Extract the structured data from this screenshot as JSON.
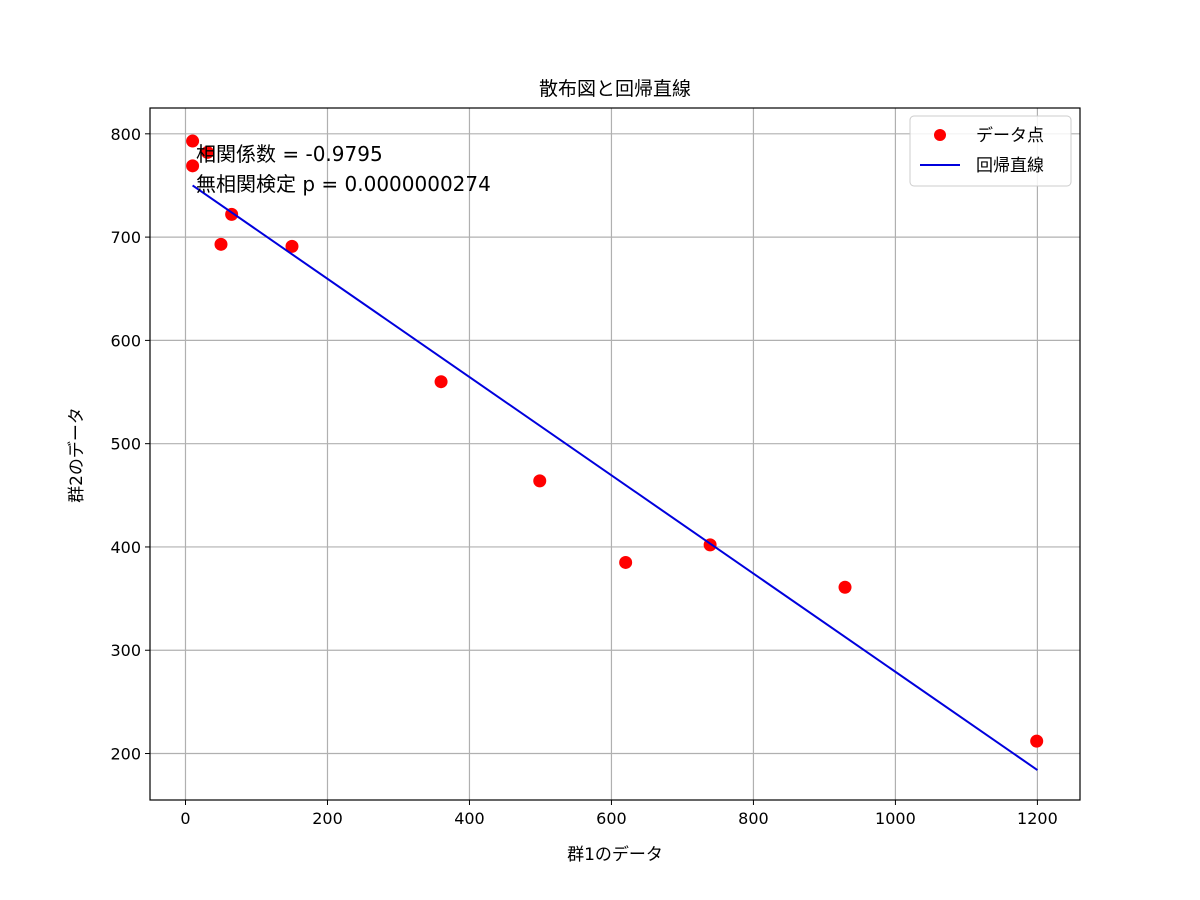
{
  "chart_data": {
    "type": "scatter",
    "title": "散布図と回帰直線",
    "xlabel": "群1のデータ",
    "ylabel": "群2のデータ",
    "xlim": [
      -50,
      1260
    ],
    "ylim": [
      155,
      825
    ],
    "xticks": [
      0,
      200,
      400,
      600,
      800,
      1000,
      1200
    ],
    "yticks": [
      200,
      300,
      400,
      500,
      600,
      700,
      800
    ],
    "grid": true,
    "legend_position": "top-right",
    "series": [
      {
        "name": "データ点",
        "kind": "scatter",
        "color": "#ff0000",
        "x": [
          10,
          10,
          31,
          50,
          65,
          150,
          360,
          499,
          620,
          739,
          929,
          1199
        ],
        "y": [
          793,
          769,
          782,
          693,
          722,
          691,
          560,
          464,
          385,
          402,
          361,
          212
        ]
      },
      {
        "name": "回帰直線",
        "kind": "line",
        "color": "#0000dd",
        "x": [
          10,
          1200
        ],
        "y": [
          750,
          184
        ]
      }
    ],
    "annotations": [
      "相関係数 = -0.9795",
      "無相関検定 p = 0.0000000274"
    ]
  }
}
